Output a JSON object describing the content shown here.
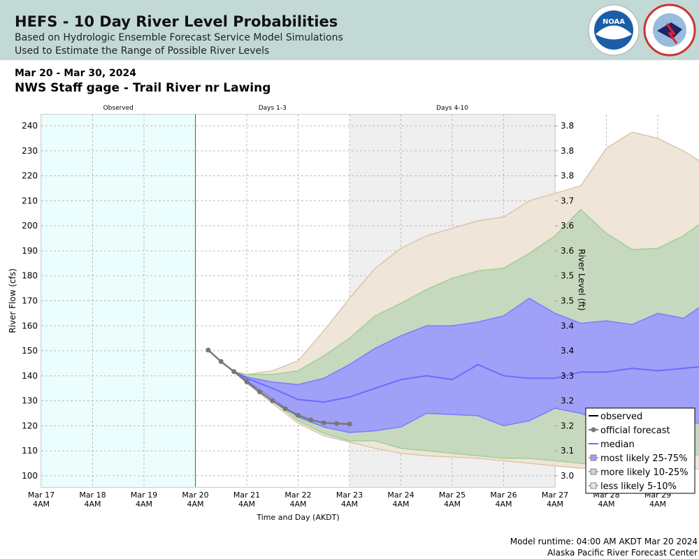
{
  "header": {
    "title": "HEFS - 10 Day River Level Probabilities",
    "subtitle1": "Based on Hydrologic Ensemble Forecast Service Model Simulations",
    "subtitle2": "Used to Estimate the Range of Possible River Levels",
    "logos": [
      "NOAA",
      "NATIONAL WEATHER SERVICE"
    ]
  },
  "date_range": "Mar 20 - Mar 30, 2024",
  "station": "NWS Staff gage - Trail River nr Lawing",
  "footer": {
    "runtime": "Model runtime: 04:00 AM AKDT Mar 20 2024",
    "center": "Alaska Pacific River Forecast Center"
  },
  "colors": {
    "observed_bg": "#ecfdfd",
    "days410_bg": "#efefef",
    "p5": "#efe5d9",
    "p10": "#c6d9bf",
    "p25": "#a0a0f8",
    "median": "#6b6bff",
    "official": "#777777"
  },
  "chart_data": {
    "type": "area",
    "xlabel": "Time and Day (AKDT)",
    "ylabel": "River Flow (cfs)",
    "y2label": "River Level (ft)",
    "ylim": [
      95.5,
      244.5
    ],
    "x_unit": "hours since Mar 17 4AM",
    "xlim": [
      0,
      240
    ],
    "sections": [
      {
        "label": "Observed",
        "from": 0,
        "to": 72
      },
      {
        "label": "Days 1-3",
        "from": 72,
        "to": 144
      },
      {
        "label": "Days 4-10",
        "from": 144,
        "to": 240
      }
    ],
    "yticks": [
      100,
      110,
      120,
      130,
      140,
      150,
      160,
      170,
      180,
      190,
      200,
      210,
      220,
      230,
      240
    ],
    "y2ticks": [
      "3.0",
      "3.1",
      "3.2",
      "3.2",
      "3.3",
      "3.4",
      "3.4",
      "3.5",
      "3.5",
      "3.6",
      "3.6",
      "3.7",
      "3.8",
      "3.8",
      "3.8"
    ],
    "xticks": [
      {
        "d": "Mar 17",
        "t": "4AM"
      },
      {
        "d": "Mar 18",
        "t": "4AM"
      },
      {
        "d": "Mar 19",
        "t": "4AM"
      },
      {
        "d": "Mar 20",
        "t": "4AM"
      },
      {
        "d": "Mar 21",
        "t": "4AM"
      },
      {
        "d": "Mar 22",
        "t": "4AM"
      },
      {
        "d": "Mar 23",
        "t": "4AM"
      },
      {
        "d": "Mar 24",
        "t": "4AM"
      },
      {
        "d": "Mar 25",
        "t": "4AM"
      },
      {
        "d": "Mar 26",
        "t": "4AM"
      },
      {
        "d": "Mar 27",
        "t": "4AM"
      },
      {
        "d": "Mar 28",
        "t": "4AM"
      },
      {
        "d": "Mar 29",
        "t": "4AM"
      }
    ],
    "legend": [
      "observed",
      "official forecast",
      "median",
      "most likely 25-75%",
      "more likely 10-25%",
      "less likely 5-10%"
    ],
    "official_forecast": {
      "x_start": 78,
      "step": 6,
      "values": [
        150.3,
        145.7,
        141.7,
        137.6,
        133.6,
        130,
        126.8,
        124.2,
        122.3,
        121.2,
        120.9,
        120.7
      ]
    },
    "bands": {
      "x": [
        90,
        96,
        108,
        120,
        132,
        144,
        156,
        168,
        180,
        192,
        204,
        216,
        228,
        240,
        252,
        264,
        276,
        288,
        300,
        312
      ],
      "p5": [
        141.7,
        137,
        129,
        121,
        116,
        113.5,
        111,
        109,
        108,
        107.5,
        107,
        106,
        105,
        104,
        103,
        103.5,
        102.5,
        102.5,
        103,
        102.5
      ],
      "p10": [
        141.7,
        137.5,
        130,
        122,
        117,
        114,
        114,
        111,
        110,
        109,
        108,
        107,
        107,
        106,
        105,
        104,
        107,
        105.5,
        106.5,
        110
      ],
      "p25": [
        141.7,
        138,
        131,
        123.5,
        119.5,
        117.3,
        118,
        119.5,
        125,
        124.5,
        124,
        120,
        122,
        127,
        125,
        121,
        122,
        123,
        123,
        119.5
      ],
      "p50": [
        141.7,
        139,
        135,
        130.5,
        129.5,
        131.5,
        135,
        138.5,
        140,
        138.5,
        144.5,
        140,
        139,
        139,
        141.5,
        141.5,
        143,
        142,
        143,
        144
      ],
      "p75": [
        141.7,
        139.5,
        137.5,
        136.5,
        139,
        144.5,
        151,
        156,
        160,
        160,
        161.5,
        164,
        171,
        165,
        161,
        162,
        160.5,
        165,
        163,
        170
      ],
      "p90": [
        141.7,
        140.5,
        140.5,
        142,
        148,
        155,
        164,
        169,
        174.5,
        179,
        182,
        183,
        189,
        196,
        206.5,
        197,
        190.5,
        191,
        196,
        203.5
      ],
      "p95": [
        141.7,
        140.5,
        142,
        146,
        158,
        171,
        183,
        191,
        196,
        199,
        202,
        203.5,
        210,
        213,
        216,
        231,
        237.5,
        235,
        230,
        223.5
      ]
    }
  }
}
